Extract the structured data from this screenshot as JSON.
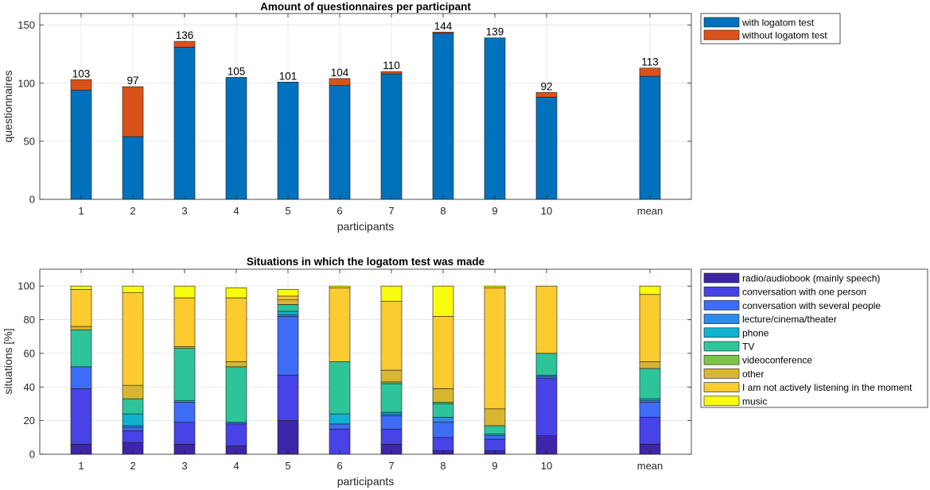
{
  "chart_data": [
    {
      "type": "bar",
      "stacked": true,
      "title": "Amount of questionnaires per participant",
      "xlabel": "participants",
      "ylabel": "questionnaires",
      "ylim": [
        0,
        160
      ],
      "yticks": [
        0,
        50,
        100,
        150
      ],
      "grid": true,
      "legend": "outside-top-right",
      "categories": [
        "1",
        "2",
        "3",
        "4",
        "5",
        "6",
        "7",
        "8",
        "9",
        "10",
        "mean"
      ],
      "category_positions": [
        1,
        2,
        3,
        4,
        5,
        6,
        7,
        8,
        9,
        10,
        12
      ],
      "xlim": [
        0.2,
        12.8
      ],
      "series": [
        {
          "name": "with logatom test",
          "color": "#0072BD",
          "values": [
            94,
            54,
            131,
            105,
            101,
            98,
            108,
            143,
            139,
            88,
            106
          ]
        },
        {
          "name": "without logatom test",
          "color": "#D95319",
          "values": [
            9,
            43,
            5,
            0,
            0,
            6,
            2,
            1,
            0,
            4,
            7
          ]
        }
      ],
      "totals": [
        103,
        97,
        136,
        105,
        101,
        104,
        110,
        144,
        139,
        92,
        113
      ]
    },
    {
      "type": "bar",
      "stacked": true,
      "title": "Situations in which the logatom test was made",
      "xlabel": "participants",
      "ylabel": "situations [%]",
      "ylim": [
        0,
        110
      ],
      "yticks": [
        0,
        20,
        40,
        60,
        80,
        100
      ],
      "grid": true,
      "legend": "outside-top-right",
      "categories": [
        "1",
        "2",
        "3",
        "4",
        "5",
        "6",
        "7",
        "8",
        "9",
        "10",
        "mean"
      ],
      "category_positions": [
        1,
        2,
        3,
        4,
        5,
        6,
        7,
        8,
        9,
        10,
        12
      ],
      "xlim": [
        0.2,
        12.8
      ],
      "series": [
        {
          "name": "radio/audiobook (mainly speech)",
          "color": "#3E26A8",
          "values": [
            6,
            7,
            6,
            5,
            20,
            0,
            6,
            2,
            2,
            11,
            6
          ]
        },
        {
          "name": "conversation with one person",
          "color": "#4743E6",
          "values": [
            33,
            7,
            13,
            13,
            27,
            15,
            9,
            8,
            7,
            34,
            16
          ]
        },
        {
          "name": "conversation with several people",
          "color": "#3D6CF7",
          "values": [
            13,
            2,
            12,
            1,
            35,
            3,
            8,
            9,
            2,
            1,
            9
          ]
        },
        {
          "name": "lecture/cinema/theater",
          "color": "#2B8CEE",
          "values": [
            0,
            1,
            0,
            0,
            1,
            0,
            1,
            3,
            0,
            1,
            1
          ]
        },
        {
          "name": "phone",
          "color": "#10B2CF",
          "values": [
            0,
            7,
            1,
            0,
            2,
            6,
            1,
            0,
            1,
            0,
            1
          ]
        },
        {
          "name": "TV",
          "color": "#2EC49A",
          "values": [
            22,
            9,
            31,
            33,
            4,
            31,
            17,
            8,
            5,
            13,
            18
          ]
        },
        {
          "name": "videoconference",
          "color": "#7CC548",
          "values": [
            0,
            0,
            0,
            0,
            0,
            0,
            1,
            1,
            0,
            0,
            0
          ]
        },
        {
          "name": "other",
          "color": "#D9B630",
          "values": [
            2,
            8,
            1,
            3,
            3,
            0,
            7,
            8,
            10,
            0,
            4
          ]
        },
        {
          "name": "I am not actively listening in the moment",
          "color": "#FCCB2F",
          "values": [
            22,
            55,
            29,
            38,
            2,
            44,
            41,
            43,
            72,
            40,
            40
          ]
        },
        {
          "name": "music",
          "color": "#F9FB0E",
          "values": [
            2,
            4,
            7,
            6,
            4,
            1,
            9,
            18,
            1,
            0,
            5
          ]
        }
      ]
    }
  ]
}
